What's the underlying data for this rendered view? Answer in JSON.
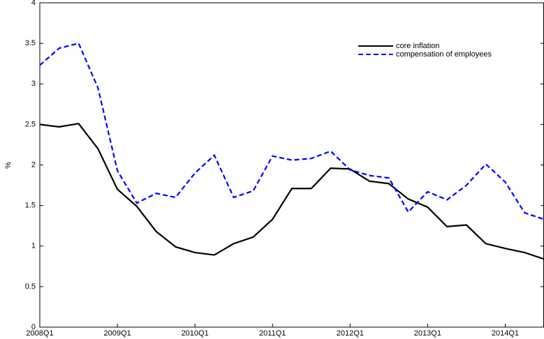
{
  "chart_data": {
    "type": "line",
    "y_label": "%",
    "categories": [
      "2008Q1",
      null,
      null,
      null,
      "2009Q1",
      null,
      null,
      null,
      "2010Q1",
      null,
      null,
      null,
      "2011Q1",
      null,
      null,
      null,
      "2012Q1",
      null,
      null,
      null,
      "2013Q1",
      null,
      null,
      null,
      "2014Q1",
      null,
      null
    ],
    "series": [
      {
        "name": "core inflation",
        "color": "#000000",
        "dash": false,
        "values": [
          2.5,
          2.47,
          2.51,
          2.2,
          1.7,
          1.49,
          1.18,
          0.99,
          0.92,
          0.89,
          1.03,
          1.11,
          1.33,
          1.71,
          1.71,
          1.96,
          1.95,
          1.8,
          1.77,
          1.58,
          1.48,
          1.24,
          1.26,
          1.03,
          0.97,
          0.92,
          0.84
        ]
      },
      {
        "name": "compensation of employees",
        "color": "#0000ff",
        "dash": true,
        "values": [
          3.23,
          3.44,
          3.5,
          2.95,
          1.93,
          1.53,
          1.65,
          1.6,
          1.9,
          2.12,
          1.6,
          1.68,
          2.11,
          2.06,
          2.08,
          2.17,
          1.94,
          1.87,
          1.84,
          1.42,
          1.67,
          1.57,
          1.75,
          2.01,
          1.79,
          1.41,
          1.33
        ]
      }
    ],
    "ylim": [
      0,
      4
    ],
    "yticks": [
      0,
      0.5,
      1,
      1.5,
      2,
      2.5,
      3,
      3.5,
      4
    ],
    "legend": "top-right"
  }
}
